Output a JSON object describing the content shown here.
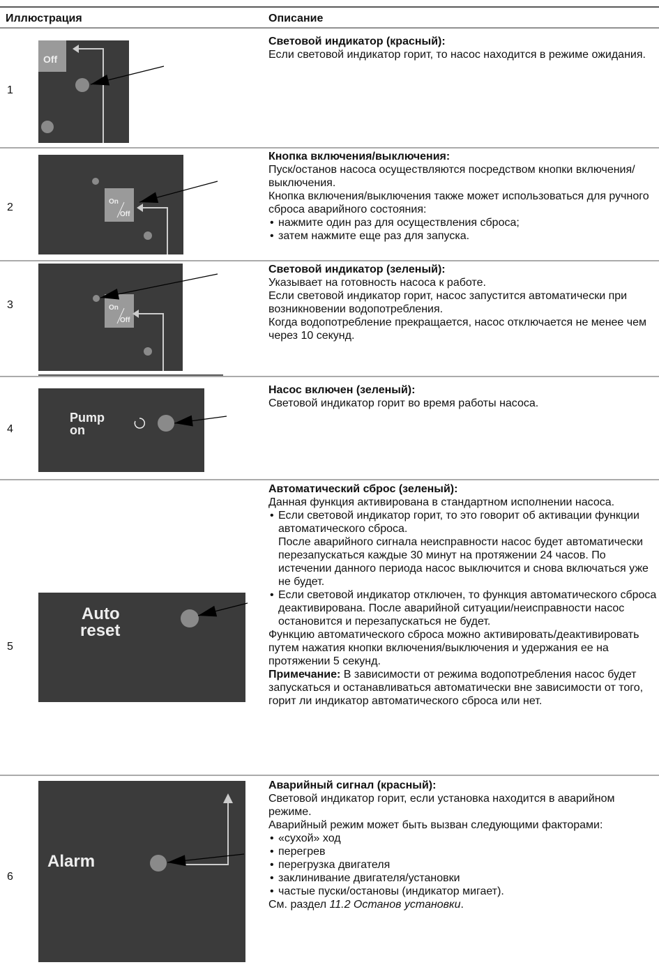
{
  "header": {
    "illustration": "Иллюстрация",
    "description": "Описание"
  },
  "rows": [
    {
      "number": "1",
      "image_labels": [
        "Off"
      ],
      "title": "Световой индикатор (красный):",
      "content": [
        {
          "kind": "p",
          "text": "Если световой индикатор горит, то насос находится в режиме ожидания."
        }
      ]
    },
    {
      "number": "2",
      "image_labels": [
        "On",
        "Off"
      ],
      "title": "Кнопка включения/выключения:",
      "content": [
        {
          "kind": "p",
          "text": "Пуск/останов насоса осуществляются посредством кнопки включения/выключения."
        },
        {
          "kind": "p",
          "text": "Кнопка включения/выключения также может использоваться для ручного сброса аварийного состояния:"
        },
        {
          "kind": "li",
          "text": [
            "нажмите один раз для осуществления сброса;"
          ]
        },
        {
          "kind": "li",
          "text": [
            "затем нажмите еще раз для запуска."
          ]
        }
      ]
    },
    {
      "number": "3",
      "image_labels": [
        "On",
        "Off"
      ],
      "title": "Световой индикатор (зеленый):",
      "content": [
        {
          "kind": "p",
          "text": "Указывает на готовность насоса к работе."
        },
        {
          "kind": "p",
          "text": "Если световой индикатор горит, насос запустится автоматически при возникновении водопотребления."
        },
        {
          "kind": "p",
          "text": "Когда водопотребление прекращается, насос отключается не менее чем через 10 секунд."
        }
      ]
    },
    {
      "number": "4",
      "image_labels": [
        "Pump",
        "on"
      ],
      "title": "Насос включен (зеленый):",
      "content": [
        {
          "kind": "p",
          "text": "Световой индикатор горит во время работы насоса."
        }
      ]
    },
    {
      "number": "5",
      "image_labels": [
        "Auto",
        "reset"
      ],
      "title": "Автоматический сброс (зеленый):",
      "content": [
        {
          "kind": "p",
          "text": "Данная функция активирована в стандартном исполнении насоса."
        },
        {
          "kind": "li",
          "text": [
            "Если световой индикатор горит, то это говорит об активации функции автоматического сброса.",
            "После аварийного сигнала неисправности насос будет автоматически перезапускаться каждые 30 минут на протяжении 24 часов. По истечении данного периода насос выключится и снова включаться уже не будет."
          ]
        },
        {
          "kind": "li",
          "text": [
            "Если световой индикатор отключен, то функция автоматического сброса деактивирована. После аварийной ситуации/неисправности насос остановится и перезапускаться не будет."
          ]
        },
        {
          "kind": "p",
          "text": "Функцию автоматического сброса можно активировать/деактивировать путем нажатия кнопки включения/выключения и удержания ее на протяжении 5 секунд."
        },
        {
          "kind": "p",
          "bold": "Примечание:",
          "text": " В зависимости от режима водопотребления насос будет запускаться и останавливаться автоматически вне зависимости от того, горит ли индикатор автоматического сброса или нет."
        }
      ]
    },
    {
      "number": "6",
      "image_labels": [
        "Alarm"
      ],
      "title": "Аварийный сигнал (красный):",
      "content": [
        {
          "kind": "p",
          "text": "Световой индикатор горит, если установка находится в аварийном режиме."
        },
        {
          "kind": "p",
          "text": "Аварийный режим может быть вызван следующими факторами:"
        },
        {
          "kind": "li",
          "text": [
            "«сухой» ход"
          ]
        },
        {
          "kind": "li",
          "text": [
            "перегрев"
          ]
        },
        {
          "kind": "li",
          "text": [
            "перегрузка двигателя"
          ]
        },
        {
          "kind": "li",
          "text": [
            "заклинивание двигателя/установки"
          ]
        },
        {
          "kind": "li",
          "text": [
            "частые пуски/остановы (индикатор мигает)."
          ]
        },
        {
          "kind": "p",
          "text": "См. раздел ",
          "italic": "11.2 Останов установки",
          "after": "."
        }
      ]
    }
  ]
}
